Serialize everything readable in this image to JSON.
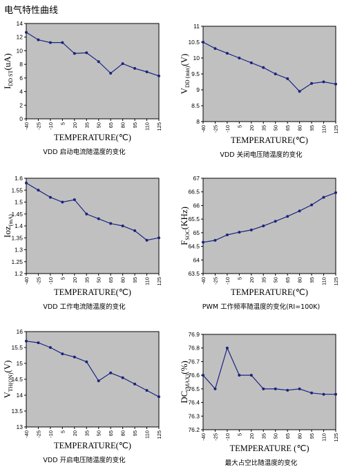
{
  "page": {
    "title": "电气特性曲线"
  },
  "chart_data": [
    {
      "type": "line",
      "ylabel": "I",
      "ylabel_sub": "DD ST",
      "ylabel_tail": "(uA)",
      "xlabel": "TEMPERATURE(℃)",
      "caption": "VDD 启动电流随温度的变化",
      "x": [
        -40,
        -25,
        -10,
        5,
        20,
        35,
        50,
        65,
        80,
        95,
        110,
        125
      ],
      "y": [
        12.7,
        11.6,
        11.2,
        11.2,
        9.6,
        9.7,
        8.4,
        6.7,
        8.1,
        7.4,
        6.9,
        6.3
      ],
      "ylim": [
        0,
        14
      ],
      "yticks": [
        0,
        2,
        4,
        6,
        8,
        10,
        12,
        14
      ],
      "ytick_labels": [
        "0",
        "2",
        "4",
        "6",
        "8",
        "10",
        "12",
        "14"
      ]
    },
    {
      "type": "line",
      "ylabel": "V",
      "ylabel_sub": "DD (min)",
      "ylabel_tail": "(V)",
      "xlabel": "TEMPERATURE(℃)",
      "caption": "VDD 关闭电压随温度的变化",
      "x": [
        -40,
        -25,
        -10,
        5,
        20,
        35,
        50,
        65,
        80,
        95,
        110,
        125
      ],
      "y": [
        10.5,
        10.3,
        10.15,
        10.0,
        9.85,
        9.7,
        9.5,
        9.35,
        8.95,
        9.2,
        9.25,
        9.18
      ],
      "ylim": [
        8,
        11
      ],
      "yticks": [
        8,
        8.5,
        9,
        9.5,
        10,
        10.5,
        11
      ],
      "ytick_labels": [
        "8",
        "8.5",
        "9",
        "9.5",
        "10",
        "10.5",
        "11"
      ]
    },
    {
      "type": "line",
      "ylabel": "Ioz",
      "ylabel_sub": "(mA)",
      "ylabel_tail": "",
      "xlabel": "TEMPERATURE(℃)",
      "caption": "VDD 工作电流随温度的变化",
      "x": [
        -40,
        -25,
        -10,
        5,
        20,
        35,
        50,
        65,
        80,
        95,
        110,
        125
      ],
      "y": [
        1.58,
        1.55,
        1.52,
        1.5,
        1.51,
        1.45,
        1.43,
        1.41,
        1.4,
        1.38,
        1.34,
        1.35
      ],
      "ylim": [
        1.2,
        1.6
      ],
      "yticks": [
        1.2,
        1.25,
        1.3,
        1.35,
        1.4,
        1.45,
        1.5,
        1.55,
        1.6
      ],
      "ytick_labels": [
        "1.2",
        "1.25",
        "1.3",
        "1.35",
        "1.4",
        "1.45",
        "1.5",
        "1.55",
        "1.6"
      ]
    },
    {
      "type": "line",
      "ylabel": "F",
      "ylabel_sub": "SOC",
      "ylabel_tail": "(KHz)",
      "xlabel": "TEMPERATURE(℃)",
      "caption": "PWM 工作频率随温度的变化(RI=100K)",
      "x": [
        -40,
        -25,
        -10,
        5,
        20,
        35,
        50,
        65,
        80,
        95,
        110,
        125
      ],
      "y": [
        64.65,
        64.72,
        64.92,
        65.02,
        65.1,
        65.25,
        65.42,
        65.6,
        65.8,
        66.02,
        66.3,
        66.47
      ],
      "ylim": [
        63.5,
        67
      ],
      "yticks": [
        63.5,
        64,
        64.5,
        65,
        65.5,
        66,
        66.5,
        67
      ],
      "ytick_labels": [
        "63.5",
        "64",
        "64.5",
        "65",
        "65.5",
        "66",
        "66.5",
        "67"
      ]
    },
    {
      "type": "line",
      "ylabel": "V",
      "ylabel_sub": "TH(ON)",
      "ylabel_tail": "(V)",
      "xlabel": "TEMPERATURE(℃)",
      "caption": "VDD 开启电压随温度的变化",
      "x": [
        -40,
        -25,
        -10,
        5,
        20,
        35,
        50,
        65,
        80,
        95,
        110,
        125
      ],
      "y": [
        15.7,
        15.65,
        15.5,
        15.3,
        15.2,
        15.05,
        14.45,
        14.7,
        14.55,
        14.35,
        14.15,
        13.95
      ],
      "ylim": [
        13,
        16
      ],
      "yticks": [
        13,
        13.5,
        14,
        14.5,
        15,
        15.5,
        16
      ],
      "ytick_labels": [
        "13",
        "13.5",
        "14",
        "14.5",
        "15",
        "15.5",
        "16"
      ]
    },
    {
      "type": "line",
      "ylabel": "DC",
      "ylabel_sub": "(MAX)",
      "ylabel_tail": "(%)",
      "xlabel": "TEMPERATURE (℃)",
      "caption": "最大占空比随温度的变化",
      "x": [
        -40,
        -25,
        -10,
        5,
        20,
        35,
        50,
        65,
        80,
        95,
        110,
        125
      ],
      "y": [
        76.6,
        76.5,
        76.8,
        76.6,
        76.6,
        76.5,
        76.5,
        76.49,
        76.5,
        76.47,
        76.46,
        76.46
      ],
      "ylim": [
        76.2,
        76.9
      ],
      "yticks": [
        76.2,
        76.3,
        76.4,
        76.5,
        76.6,
        76.7,
        76.8,
        76.9
      ],
      "ytick_labels": [
        "76.2",
        "76.3",
        "76.4",
        "76.5",
        "76.6",
        "76.7",
        "76.8",
        "76.9"
      ]
    }
  ],
  "x_tick_labels": [
    "-40",
    "-25",
    "-10",
    "5",
    "20",
    "35",
    "50",
    "65",
    "80",
    "95",
    "110",
    "125"
  ],
  "colors": {
    "plot_bg": "#c0c0c0",
    "line": "#1a237e",
    "axis": "#000000"
  }
}
